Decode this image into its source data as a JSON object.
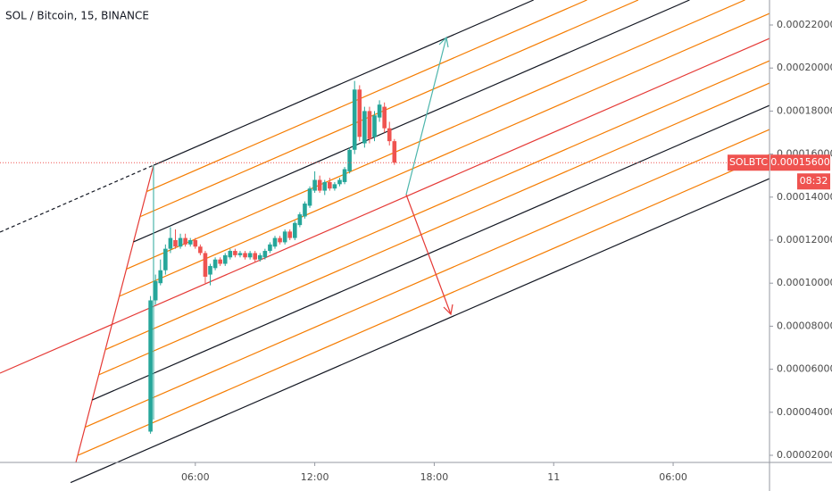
{
  "chart_data": {
    "type": "candlestick",
    "title": "SOL / Bitcoin, 15, BINANCE",
    "symbol": "SOLBTC",
    "countdown": "08:32",
    "last_price": {
      "value": 0.000156,
      "label": "0.00015600"
    },
    "up_color": "#26a69a",
    "down_color": "#ef5350",
    "x": [
      3.75,
      4,
      4.25,
      4.5,
      4.75,
      5,
      5.25,
      5.5,
      5.75,
      6,
      6.25,
      6.5,
      6.75,
      7,
      7.25,
      7.5,
      7.75,
      8,
      8.25,
      8.5,
      8.75,
      9,
      9.25,
      9.5,
      9.75,
      10,
      10.25,
      10.5,
      10.75,
      11,
      11.25,
      11.5,
      11.75,
      12,
      12.25,
      12.5,
      12.75,
      13,
      13.25,
      13.5,
      13.75,
      14,
      14.25,
      14.5,
      14.75,
      15,
      15.25,
      15.5,
      15.75,
      16
    ],
    "open": [
      3.1e-05,
      9.2e-05,
      0.0001,
      0.000106,
      0.000116,
      0.00012,
      0.000117,
      0.000121,
      0.000118,
      0.00012,
      0.000117,
      0.000114,
      0.000104,
      0.000107,
      0.000111,
      0.000109,
      0.000112,
      0.000115,
      0.000113,
      0.000114,
      0.000112,
      0.000114,
      0.000111,
      0.000112,
      0.000115,
      0.000117,
      0.000121,
      0.000119,
      0.000124,
      0.000121,
      0.000127,
      0.000131,
      0.000136,
      0.000143,
      0.000148,
      0.000143,
      0.000147,
      0.000144,
      0.000146,
      0.000147,
      0.000152,
      0.000162,
      0.00019,
      0.000165,
      0.00018,
      0.000168,
      0.000177,
      0.000182,
      0.000172,
      0.000166
    ],
    "high": [
      9.4e-05,
      0.000104,
      0.000111,
      0.000118,
      0.000126,
      0.000125,
      0.000123,
      0.000123,
      0.000121,
      0.000121,
      0.000118,
      0.000115,
      0.000109,
      0.000112,
      0.000112,
      0.000114,
      0.000116,
      0.000116,
      0.000115,
      0.000115,
      0.000115,
      0.000115,
      0.000114,
      0.000116,
      0.000119,
      0.000122,
      0.000122,
      0.000125,
      0.000125,
      0.000129,
      0.000133,
      0.000138,
      0.000145,
      0.000152,
      0.00015,
      0.000148,
      0.000149,
      0.000147,
      0.000149,
      0.000154,
      0.000163,
      0.000194,
      0.000192,
      0.000182,
      0.000182,
      0.00018,
      0.000185,
      0.000184,
      0.000175,
      0.000167
    ],
    "low": [
      3e-05,
      9e-05,
      9.9e-05,
      0.000104,
      0.000114,
      0.000116,
      0.000116,
      0.000117,
      0.000117,
      0.000116,
      0.000113,
      0.0001,
      9.9e-05,
      0.000106,
      0.000108,
      0.000108,
      0.000111,
      0.000112,
      0.000112,
      0.000111,
      0.000111,
      0.00011,
      0.00011,
      0.000111,
      0.000114,
      0.000116,
      0.000118,
      0.000118,
      0.00012,
      0.00012,
      0.000126,
      0.00013,
      0.000135,
      0.000142,
      0.000142,
      0.000141,
      0.000143,
      0.000143,
      0.000145,
      0.000146,
      0.000151,
      0.00016,
      0.000166,
      0.000163,
      0.000165,
      0.000166,
      0.000175,
      0.00017,
      0.000164,
      0.000155
    ],
    "close": [
      9.2e-05,
      0.000101,
      0.000106,
      0.000116,
      0.000121,
      0.000117,
      0.000121,
      0.000118,
      0.00012,
      0.000117,
      0.000114,
      0.000103,
      0.000108,
      0.000111,
      0.000109,
      0.000113,
      0.000115,
      0.000113,
      0.000114,
      0.000112,
      0.000114,
      0.000111,
      0.000113,
      0.000115,
      0.000118,
      0.000121,
      0.000119,
      0.000124,
      0.000121,
      0.000128,
      0.000132,
      0.000137,
      0.000144,
      0.000148,
      0.000143,
      0.000147,
      0.000144,
      0.000146,
      0.000148,
      0.000153,
      0.000162,
      0.00019,
      0.000168,
      0.00018,
      0.000167,
      0.000178,
      0.000183,
      0.000172,
      0.000166,
      0.000156
    ],
    "xlim": [
      -3.81,
      34.84
    ],
    "xticks": [
      {
        "value": 6,
        "label": "06:00"
      },
      {
        "value": 12,
        "label": "12:00"
      },
      {
        "value": 18,
        "label": "18:00"
      },
      {
        "value": 24,
        "label": "11"
      },
      {
        "value": 30,
        "label": "06:00"
      }
    ],
    "ylim": [
      1.668e-05,
      0.00023162
    ],
    "yticks": [
      {
        "value": 2e-05,
        "label": "0.00002000"
      },
      {
        "value": 4e-05,
        "label": "0.00004000"
      },
      {
        "value": 6e-05,
        "label": "0.00006000"
      },
      {
        "value": 8e-05,
        "label": "0.00008000"
      },
      {
        "value": 0.0001,
        "label": "0.00010000"
      },
      {
        "value": 0.00012,
        "label": "0.00012000"
      },
      {
        "value": 0.00014,
        "label": "0.00014000"
      },
      {
        "value": 0.00016,
        "label": "0.00016000"
      },
      {
        "value": 0.00018,
        "label": "0.00018000"
      },
      {
        "value": 0.0002,
        "label": "0.00020000"
      },
      {
        "value": 0.00022,
        "label": "0.00022000"
      }
    ]
  }
}
